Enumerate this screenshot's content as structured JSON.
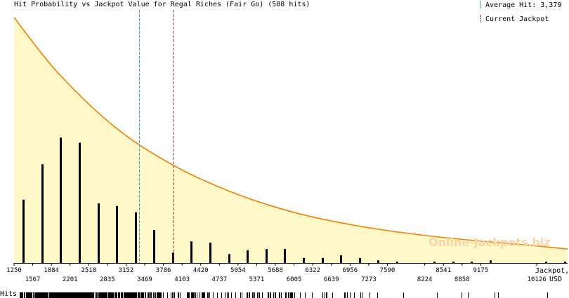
{
  "title": "Hit Probability vs Jackpot Value for Regal Riches (Fair Go) (588 hits)",
  "legend": {
    "average_label": "Average Hit: 3,379",
    "current_label": "Current Jackpot"
  },
  "watermark": "Online-Jackpots.biz",
  "axis_unit_line1": "Jackpot,",
  "axis_unit_line2": "USD",
  "rug_label": "Hits",
  "colors": {
    "curve": "#f08000",
    "fill": "#fff8c8",
    "bars": "#000000",
    "average_line": "#3399cc",
    "current_line": "#993333"
  },
  "chart_data": {
    "type": "bar",
    "title": "Hit Probability vs Jackpot Value for Regal Riches (Fair Go) (588 hits)",
    "xlim": [
      1250,
      10650
    ],
    "xticks": [
      1250,
      1567,
      1884,
      2201,
      2518,
      2835,
      3152,
      3469,
      3786,
      4103,
      4420,
      4737,
      5054,
      5371,
      5688,
      6005,
      6322,
      6639,
      6956,
      7273,
      7590,
      8224,
      8541,
      8858,
      9175,
      10126
    ],
    "bars": {
      "x": [
        1409,
        1726,
        2043,
        2360,
        2677,
        2994,
        3311,
        3628,
        3945,
        4262,
        4579,
        4896,
        5213,
        5530,
        5847,
        6164,
        6481,
        6798,
        7115,
        7432,
        7749,
        8383,
        8700,
        9017,
        9334,
        10285,
        10600
      ],
      "values": [
        50,
        78,
        99,
        95,
        47,
        45,
        40,
        26,
        8,
        17,
        16,
        7,
        10,
        11,
        11,
        4,
        4,
        6,
        4,
        2,
        1,
        1,
        1,
        1,
        2,
        1,
        1
      ]
    },
    "ylim": [
      0,
      200
    ],
    "probability_curve": {
      "x": [
        1250,
        2000,
        3000,
        4000,
        5000,
        6000,
        7000,
        8000,
        9000,
        10000,
        10650
      ],
      "y": [
        194,
        150,
        106,
        76,
        55,
        40,
        30,
        23,
        18,
        14,
        11
      ]
    },
    "average_hit": 3379,
    "current_jackpot": 3960
  }
}
